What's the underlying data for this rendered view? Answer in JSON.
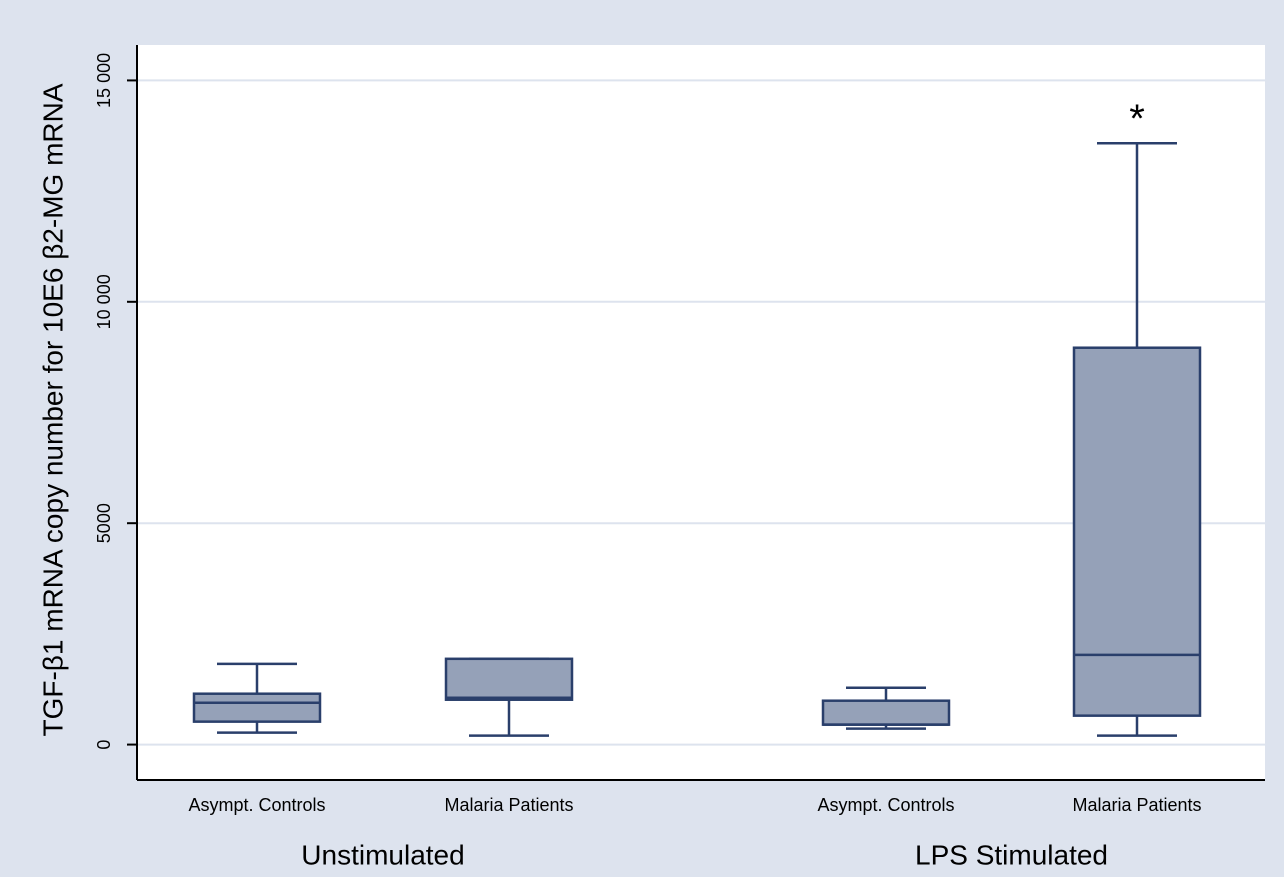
{
  "chart_data": {
    "type": "box",
    "y_label": "TGF-β1 mRNA copy number for 10E6  β2-MG mRNA",
    "ylim": [
      -800,
      15800
    ],
    "yticks": [
      0,
      5000,
      {
        "value": 10000,
        "label": "10 000"
      },
      {
        "value": 15000,
        "label": "15 000"
      }
    ],
    "grid": true,
    "color": "#95a1b8",
    "edge_color": "#2a3f6b",
    "groups": [
      {
        "label": "Unstimulated",
        "boxes": [
          {
            "category": "Asympt. Controls",
            "whislo": 270,
            "q1": 518,
            "med": 946,
            "q3": 1149,
            "whishi": 1824
          },
          {
            "category": "Malaria Patients",
            "whislo": 203,
            "q1": 1013,
            "med": 1058,
            "q3": 1937,
            "whishi": 1937
          }
        ]
      },
      {
        "label": "LPS Stimulated",
        "boxes": [
          {
            "category": "Asympt. Controls",
            "whislo": 360,
            "q1": 450,
            "med": 450,
            "q3": 991,
            "whishi": 1284
          },
          {
            "category": "Malaria Patients",
            "whislo": 203,
            "q1": 653,
            "med": 2027,
            "q3": 8963,
            "whishi": 13580,
            "annotation": "*"
          }
        ]
      }
    ]
  }
}
